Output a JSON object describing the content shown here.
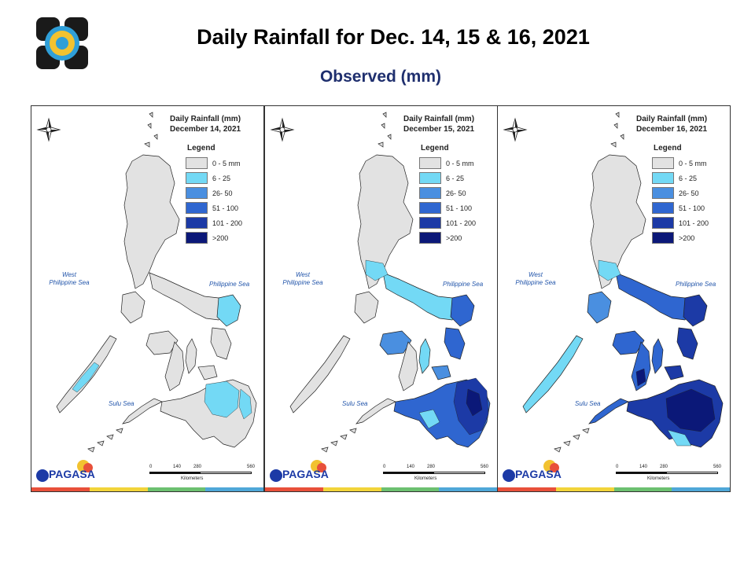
{
  "header": {
    "title": "Daily Rainfall for Dec. 14, 15 & 16, 2021",
    "subtitle": "Observed (mm)"
  },
  "legend": {
    "heading": "Legend",
    "classes": [
      {
        "label": "0 - 5 mm",
        "color": "#e2e2e2"
      },
      {
        "label": "6 - 25",
        "color": "#73d9f5"
      },
      {
        "label": "26- 50",
        "color": "#4a8fe0"
      },
      {
        "label": "51 - 100",
        "color": "#2f66d0"
      },
      {
        "label": "101 - 200",
        "color": "#1c3aa6"
      },
      {
        "label": ">200",
        "color": "#0b1878"
      }
    ]
  },
  "panels": [
    {
      "title": "Daily Rainfall (mm)",
      "date": "December 14, 2021",
      "sea_west": "West\nPhilippine Sea",
      "sea_east": "Philippine Sea",
      "sea_south": "Sulu Sea"
    },
    {
      "title": "Daily Rainfall (mm)",
      "date": "December 15, 2021",
      "sea_west": "West\nPhilippine Sea",
      "sea_east": "Philippine Sea",
      "sea_south": "Sulu Sea"
    },
    {
      "title": "Daily Rainfall (mm)",
      "date": "December 16, 2021",
      "sea_west": "West\nPhilippine Sea",
      "sea_east": "Philippine Sea",
      "sea_south": "Sulu Sea"
    }
  ],
  "scale": {
    "ticks": [
      "0",
      "140",
      "280",
      "560"
    ],
    "unit": "Kilometers"
  },
  "branding": {
    "agency": "PAGASA"
  },
  "stripe_colors": [
    "#e8503a",
    "#f2d43a",
    "#6cc070",
    "#4fa7d8"
  ]
}
